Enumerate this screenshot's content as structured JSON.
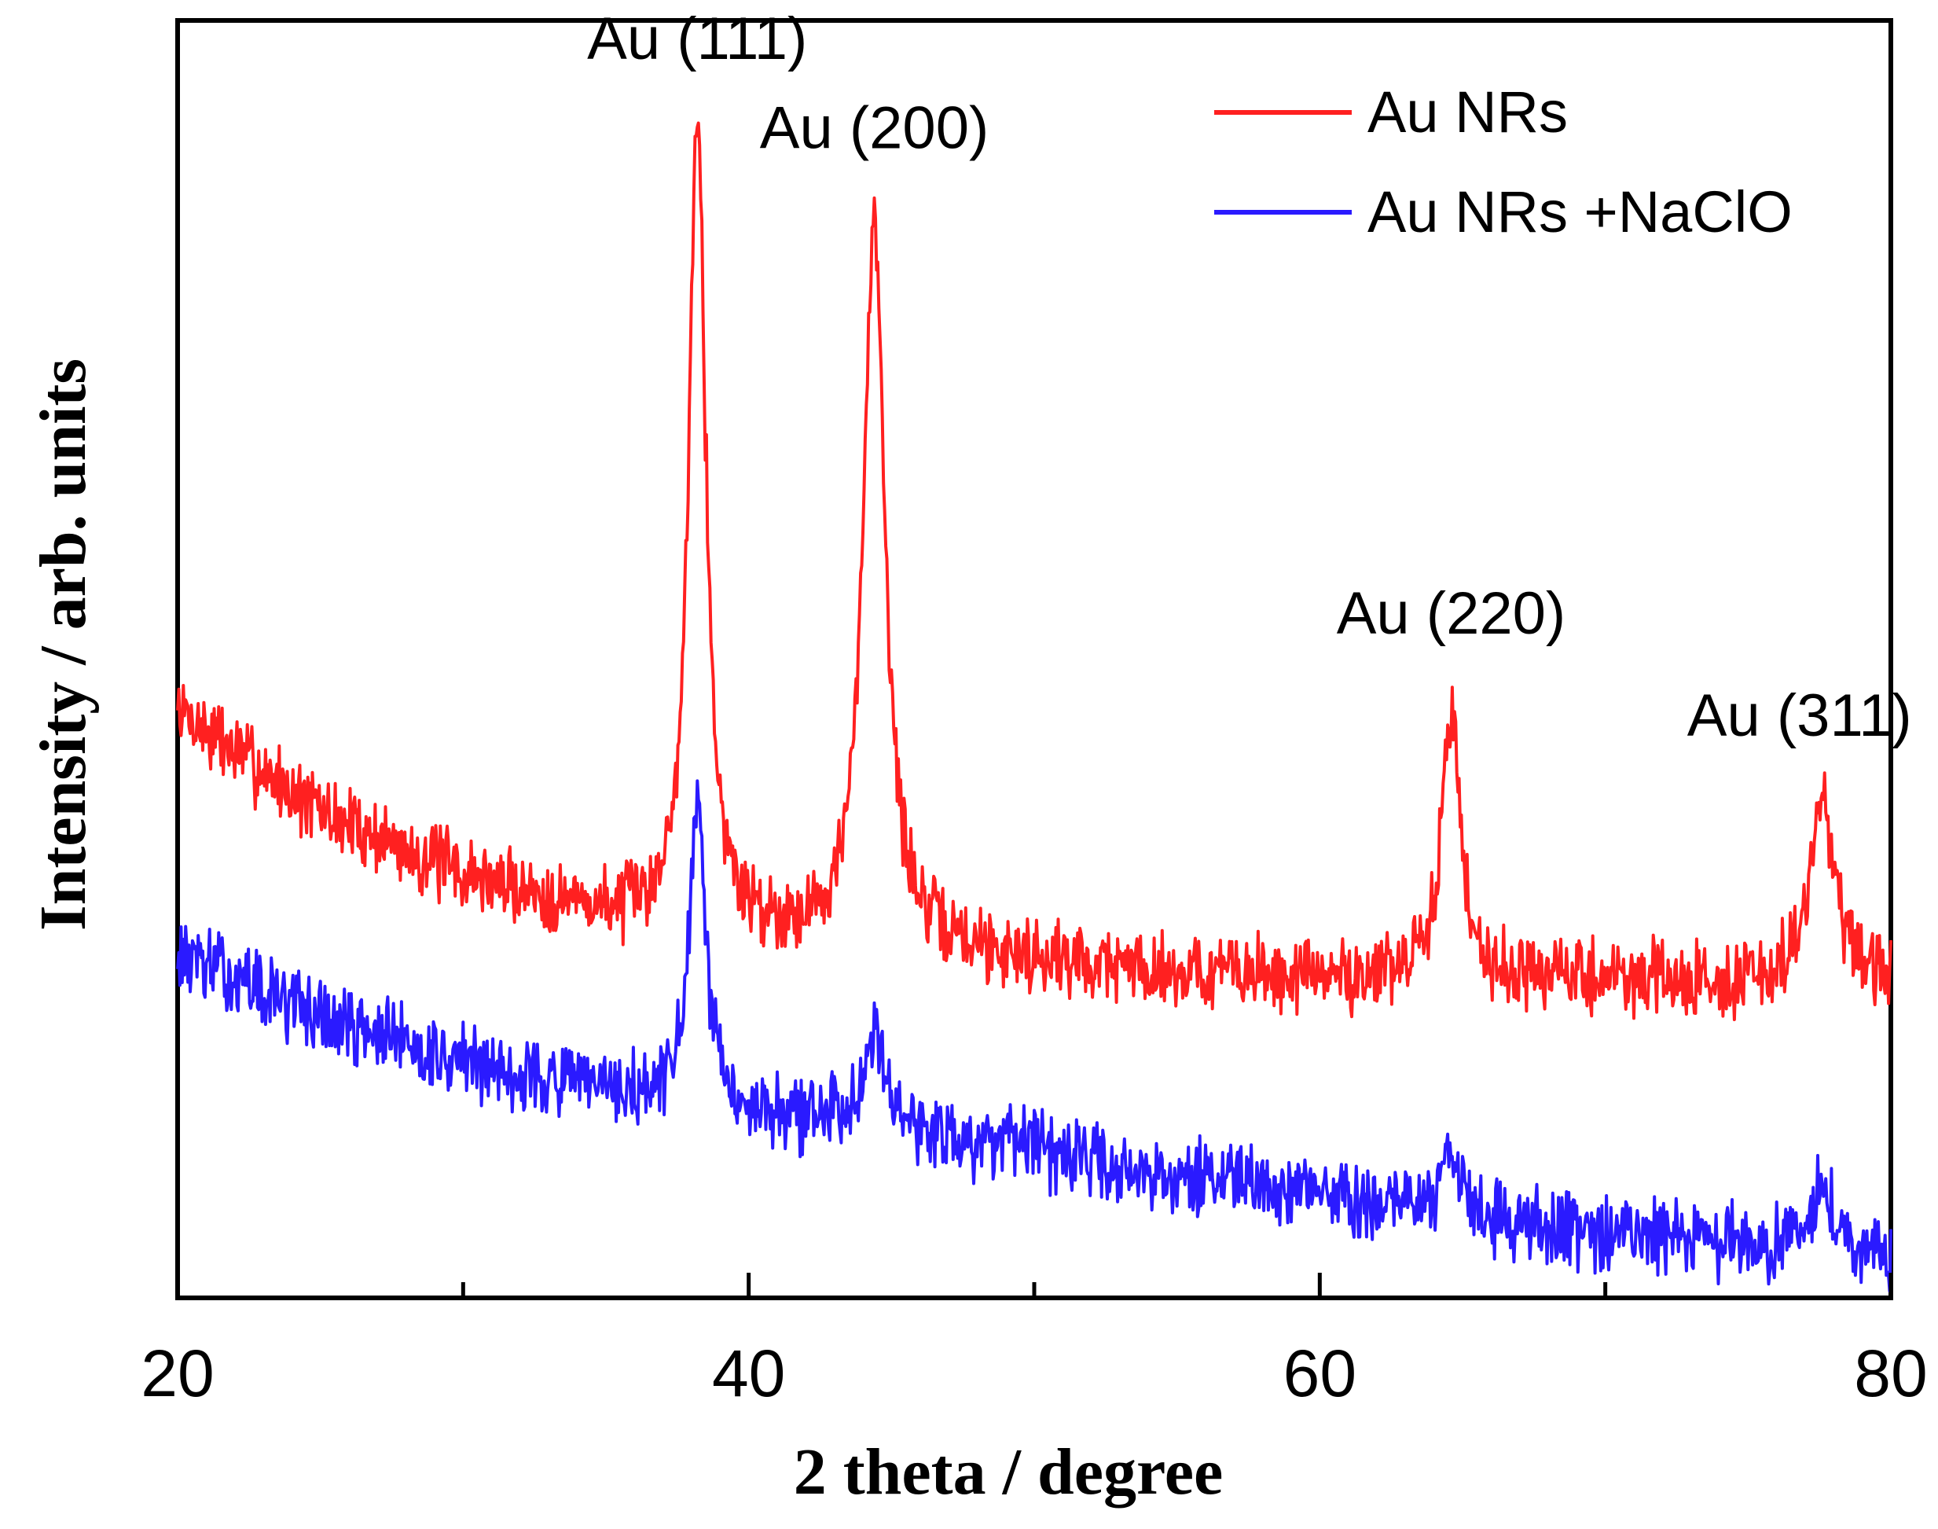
{
  "chart_data": {
    "type": "line",
    "title": "",
    "xlabel": "2 theta / degree",
    "ylabel": "Intensity / arb. units",
    "xlim": [
      20,
      80
    ],
    "ylim": [
      0,
      100
    ],
    "x_major_ticks": [
      20,
      40,
      60,
      80
    ],
    "x_minor_ticks": [
      30,
      50,
      70
    ],
    "x_tick_labels": [
      "20",
      "40",
      "60",
      "80"
    ],
    "y_ticks_shown": false,
    "grid": false,
    "legend_position": "top-right",
    "series": [
      {
        "name": "Au NRs",
        "color": "#ff2020",
        "baseline_points": [
          [
            20,
            46
          ],
          [
            25,
            38
          ],
          [
            30,
            33
          ],
          [
            35,
            30
          ],
          [
            40,
            28.5
          ],
          [
            45,
            27.5
          ],
          [
            50,
            26.5
          ],
          [
            55,
            25.5
          ],
          [
            60,
            25
          ],
          [
            65,
            25
          ],
          [
            70,
            25
          ],
          [
            75,
            24.5
          ],
          [
            80,
            24.5
          ]
        ],
        "peaks": [
          {
            "x": 38.2,
            "height": 65,
            "width": 0.35
          },
          {
            "x": 44.4,
            "height": 57,
            "width": 0.45
          },
          {
            "x": 64.6,
            "height": 21,
            "width": 0.4
          },
          {
            "x": 77.6,
            "height": 15,
            "width": 0.5
          }
        ],
        "noise_amplitude": 4.5,
        "seed": 7
      },
      {
        "name": "Au NRs +NaClO",
        "color": "#2a1aff",
        "baseline_points": [
          [
            20,
            27
          ],
          [
            25,
            22
          ],
          [
            30,
            18.5
          ],
          [
            35,
            16
          ],
          [
            40,
            14.5
          ],
          [
            45,
            13
          ],
          [
            50,
            11.5
          ],
          [
            55,
            9.5
          ],
          [
            60,
            8
          ],
          [
            65,
            6.5
          ],
          [
            70,
            5
          ],
          [
            75,
            4
          ],
          [
            80,
            3.5
          ]
        ],
        "peaks": [
          {
            "x": 38.2,
            "height": 23,
            "width": 0.35
          },
          {
            "x": 44.4,
            "height": 8,
            "width": 0.5
          },
          {
            "x": 64.6,
            "height": 5,
            "width": 0.4
          },
          {
            "x": 77.6,
            "height": 5,
            "width": 0.5
          }
        ],
        "noise_amplitude": 4.5,
        "seed": 13
      }
    ],
    "annotations": [
      {
        "text": "Au (111)",
        "x": 38.2,
        "y": 97
      },
      {
        "text": "Au (200)",
        "x": 44.4,
        "y": 90
      },
      {
        "text": "Au (220)",
        "x": 64.6,
        "y": 52
      },
      {
        "text": "Au (311)",
        "x": 76.8,
        "y": 44
      }
    ]
  }
}
